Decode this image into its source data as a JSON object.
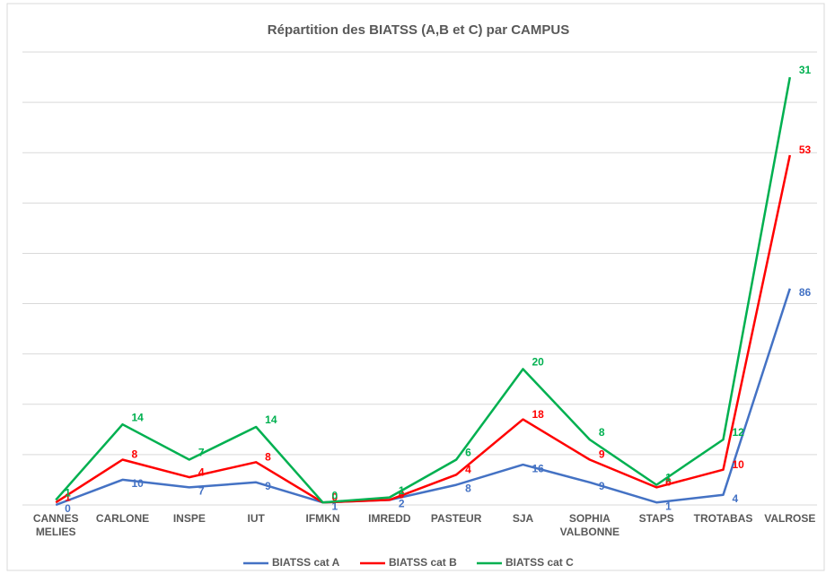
{
  "chart_data": {
    "type": "line",
    "stacked": true,
    "title": "Répartition des BIATSS (A,B et C) par CAMPUS",
    "categories": [
      "CANNES MELIES",
      "CARLONE",
      "INSPE",
      "IUT",
      "IFMKN",
      "IMREDD",
      "PASTEUR",
      "SJA",
      "SOPHIA VALBONNE",
      "STAPS",
      "TROTABAS",
      "VALROSE"
    ],
    "series": [
      {
        "name": "BIATSS cat A",
        "color": "#4472c4",
        "values": [
          0,
          10,
          7,
          9,
          1,
          2,
          8,
          16,
          9,
          1,
          4,
          86
        ]
      },
      {
        "name": "BIATSS cat B",
        "color": "#ff0000",
        "values": [
          1,
          8,
          4,
          8,
          0,
          0,
          4,
          18,
          9,
          6,
          10,
          53
        ]
      },
      {
        "name": "BIATSS cat C",
        "color": "#00b050",
        "values": [
          1,
          14,
          7,
          14,
          0,
          1,
          6,
          20,
          8,
          1,
          12,
          31
        ]
      }
    ],
    "ylim": [
      0,
      180
    ],
    "yticks": [
      0,
      20,
      40,
      60,
      80,
      100,
      120,
      140,
      160,
      180
    ],
    "grid": true,
    "legend": "bottom"
  }
}
